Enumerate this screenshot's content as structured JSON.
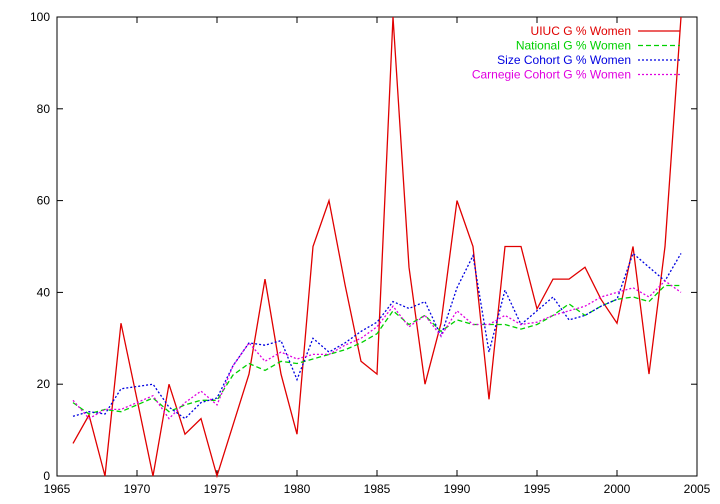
{
  "chart_data": {
    "type": "line",
    "x": [
      1966,
      1967,
      1968,
      1969,
      1970,
      1971,
      1972,
      1973,
      1974,
      1975,
      1976,
      1977,
      1978,
      1979,
      1980,
      1981,
      1982,
      1983,
      1984,
      1985,
      1986,
      1987,
      1988,
      1989,
      1990,
      1991,
      1992,
      1993,
      1994,
      1995,
      1996,
      1997,
      1998,
      1999,
      2000,
      2001,
      2002,
      2003,
      2004
    ],
    "xlim": [
      1965,
      2005
    ],
    "ylim": [
      0,
      100
    ],
    "xticks": [
      1965,
      1970,
      1975,
      1980,
      1985,
      1990,
      1995,
      2000,
      2005
    ],
    "yticks": [
      0,
      20,
      40,
      60,
      80,
      100
    ],
    "legend_position": "top-right",
    "grid": false,
    "series": [
      {
        "name": "UIUC G % Women",
        "color": "#e00000",
        "dash": "solid",
        "values": [
          7.1,
          13.3,
          0,
          33.3,
          16.7,
          0,
          20,
          9.1,
          12.5,
          0,
          11.1,
          22.2,
          42.9,
          22.2,
          9.1,
          50,
          60,
          41.7,
          25,
          22.2,
          100,
          45.5,
          20,
          33.3,
          60,
          50,
          16.7,
          50,
          50,
          36.4,
          42.9,
          42.9,
          45.5,
          38.5,
          33.3,
          50,
          22.2,
          50,
          100
        ]
      },
      {
        "name": "National G % Women",
        "color": "#00d000",
        "dash": "dashed",
        "values": [
          16,
          13.5,
          14.5,
          14,
          15.5,
          17,
          14,
          15.5,
          16.5,
          16.5,
          22,
          24.5,
          23,
          25,
          24.5,
          25.5,
          26.5,
          27.5,
          29,
          31,
          36,
          33,
          35,
          31.5,
          34,
          33,
          33,
          33,
          32,
          33,
          35,
          37.5,
          35,
          37,
          38.5,
          39,
          38,
          41.5,
          41.5
        ]
      },
      {
        "name": "Size Cohort G % Women",
        "color": "#0000e0",
        "dash": "dotted",
        "values": [
          13,
          14,
          13.5,
          19,
          19.5,
          20,
          15,
          12.5,
          16,
          17,
          24,
          29,
          28.5,
          29.5,
          21,
          30,
          27,
          29,
          31.5,
          33.5,
          38,
          36.5,
          38,
          30.5,
          41,
          48,
          27,
          40.5,
          33,
          36,
          39,
          34,
          35,
          37,
          38.5,
          48.5,
          45.5,
          42.5,
          48.5
        ]
      },
      {
        "name": "Carnegie Cohort G % Women",
        "color": "#e000e0",
        "dash": "dotted",
        "values": [
          16.5,
          12.5,
          14.5,
          14.5,
          16,
          17.5,
          12.5,
          16,
          18.5,
          15.5,
          24,
          29,
          25,
          27,
          25.5,
          26.5,
          26.5,
          28.5,
          30,
          32.5,
          37,
          32.5,
          35,
          30.5,
          36,
          33,
          33,
          35,
          33,
          33.5,
          35,
          36,
          37,
          39,
          40,
          41,
          39,
          42.5,
          40
        ]
      }
    ]
  }
}
